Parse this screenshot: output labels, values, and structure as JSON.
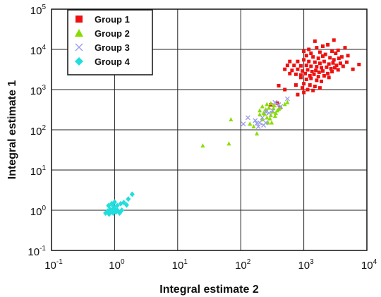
{
  "chart_data": {
    "type": "scatter",
    "xlabel": "Integral estimate 2",
    "ylabel": "Integral estimate 1",
    "x_scale": "log",
    "y_scale": "log",
    "xlim": [
      0.1,
      10000
    ],
    "ylim": [
      0.1,
      100000
    ],
    "x_ticks": [
      {
        "base": "10",
        "exp": "-1",
        "value": 0.1
      },
      {
        "base": "10",
        "exp": "0",
        "value": 1
      },
      {
        "base": "10",
        "exp": "1",
        "value": 10
      },
      {
        "base": "10",
        "exp": "2",
        "value": 100
      },
      {
        "base": "10",
        "exp": "3",
        "value": 1000
      },
      {
        "base": "10",
        "exp": "4",
        "value": 10000
      }
    ],
    "y_ticks": [
      {
        "base": "10",
        "exp": "-1",
        "value": 0.1
      },
      {
        "base": "10",
        "exp": "0",
        "value": 1
      },
      {
        "base": "10",
        "exp": "1",
        "value": 10
      },
      {
        "base": "10",
        "exp": "2",
        "value": 100
      },
      {
        "base": "10",
        "exp": "3",
        "value": 1000
      },
      {
        "base": "10",
        "exp": "4",
        "value": 10000
      },
      {
        "base": "10",
        "exp": "5",
        "value": 100000
      }
    ],
    "grid": true,
    "legend_position": "top-left",
    "series": [
      {
        "name": "Group 1",
        "marker": "square",
        "color": "#ee1111",
        "points": [
          [
            1500,
            16000
          ],
          [
            3000,
            17000
          ],
          [
            1200,
            10000
          ],
          [
            1600,
            11000
          ],
          [
            2000,
            12000
          ],
          [
            2400,
            13000
          ],
          [
            2800,
            9000
          ],
          [
            4500,
            11000
          ],
          [
            3500,
            9500
          ],
          [
            1000,
            9000
          ],
          [
            1300,
            8000
          ],
          [
            1800,
            8500
          ],
          [
            2200,
            7500
          ],
          [
            3200,
            8000
          ],
          [
            5000,
            7000
          ],
          [
            4000,
            6500
          ],
          [
            1100,
            7000
          ],
          [
            1400,
            6500
          ],
          [
            1700,
            6000
          ],
          [
            2000,
            6800
          ],
          [
            2600,
            6200
          ],
          [
            3000,
            5500
          ],
          [
            3600,
            6000
          ],
          [
            7500,
            4200
          ],
          [
            4800,
            4800
          ],
          [
            600,
            5000
          ],
          [
            800,
            5000
          ],
          [
            1000,
            5500
          ],
          [
            1200,
            5000
          ],
          [
            1500,
            4800
          ],
          [
            1800,
            4500
          ],
          [
            2100,
            5000
          ],
          [
            2500,
            4300
          ],
          [
            2900,
            4600
          ],
          [
            3300,
            4000
          ],
          [
            3800,
            4500
          ],
          [
            4200,
            3800
          ],
          [
            6000,
            3200
          ],
          [
            550,
            4000
          ],
          [
            700,
            4000
          ],
          [
            900,
            3900
          ],
          [
            1100,
            4000
          ],
          [
            1300,
            3800
          ],
          [
            1600,
            3700
          ],
          [
            1900,
            3500
          ],
          [
            2300,
            3600
          ],
          [
            2700,
            3300
          ],
          [
            3100,
            3500
          ],
          [
            3500,
            3100
          ],
          [
            500,
            3200
          ],
          [
            650,
            3000
          ],
          [
            800,
            3200
          ],
          [
            950,
            2900
          ],
          [
            1150,
            3100
          ],
          [
            1350,
            2800
          ],
          [
            1550,
            3000
          ],
          [
            1750,
            2700
          ],
          [
            2000,
            2900
          ],
          [
            2400,
            2500
          ],
          [
            2800,
            2800
          ],
          [
            600,
            2500
          ],
          [
            750,
            2400
          ],
          [
            900,
            2300
          ],
          [
            1050,
            2500
          ],
          [
            1250,
            2200
          ],
          [
            1450,
            2400
          ],
          [
            1700,
            2100
          ],
          [
            2100,
            2200
          ],
          [
            2500,
            2000
          ],
          [
            900,
            2000
          ],
          [
            1100,
            1800
          ],
          [
            1300,
            1900
          ],
          [
            1600,
            1700
          ],
          [
            1900,
            1600
          ],
          [
            1000,
            1400
          ],
          [
            1250,
            1300
          ],
          [
            1500,
            1200
          ],
          [
            1800,
            1100
          ],
          [
            950,
            1100
          ],
          [
            750,
            1300
          ],
          [
            1150,
            1000
          ],
          [
            1400,
            950
          ],
          [
            1000,
            850
          ],
          [
            800,
            750
          ],
          [
            400,
            1250
          ],
          [
            500,
            1000
          ],
          [
            380,
            460
          ],
          [
            300,
            420
          ],
          [
            420,
            360
          ]
        ]
      },
      {
        "name": "Group 2",
        "marker": "triangle",
        "color": "#88dd00",
        "points": [
          [
            25,
            40
          ],
          [
            65,
            45
          ],
          [
            70,
            180
          ],
          [
            140,
            140
          ],
          [
            180,
            80
          ],
          [
            160,
            120
          ],
          [
            200,
            300
          ],
          [
            220,
            380
          ],
          [
            240,
            250
          ],
          [
            260,
            200
          ],
          [
            280,
            350
          ],
          [
            300,
            450
          ],
          [
            320,
            280
          ],
          [
            350,
            220
          ],
          [
            380,
            300
          ],
          [
            420,
            350
          ],
          [
            220,
            180
          ],
          [
            270,
            150
          ],
          [
            250,
            320
          ],
          [
            340,
            400
          ],
          [
            360,
            260
          ],
          [
            300,
            230
          ],
          [
            400,
            330
          ],
          [
            500,
            430
          ],
          [
            550,
            480
          ],
          [
            230,
            260
          ],
          [
            290,
            190
          ],
          [
            330,
            340
          ],
          [
            200,
            240
          ],
          [
            260,
            430
          ],
          [
            310,
            150
          ]
        ]
      },
      {
        "name": "Group 3",
        "marker": "cross",
        "color": "#9999ee",
        "points": [
          [
            110,
            140
          ],
          [
            130,
            200
          ],
          [
            170,
            170
          ],
          [
            200,
            150
          ],
          [
            230,
            130
          ],
          [
            190,
            120
          ],
          [
            220,
            200
          ],
          [
            250,
            280
          ],
          [
            280,
            260
          ],
          [
            320,
            300
          ],
          [
            350,
            480
          ],
          [
            400,
            420
          ],
          [
            430,
            380
          ],
          [
            550,
            590
          ],
          [
            250,
            150
          ],
          [
            180,
            145
          ]
        ]
      },
      {
        "name": "Group 4",
        "marker": "diamond",
        "color": "#22dddd",
        "points": [
          [
            0.72,
            0.85
          ],
          [
            0.78,
            0.95
          ],
          [
            0.82,
            0.8
          ],
          [
            0.85,
            1.05
          ],
          [
            0.88,
            0.9
          ],
          [
            0.92,
            1.0
          ],
          [
            0.95,
            0.85
          ],
          [
            1.0,
            1.1
          ],
          [
            1.05,
            0.9
          ],
          [
            1.1,
            1.0
          ],
          [
            1.15,
            0.95
          ],
          [
            1.2,
            0.85
          ],
          [
            0.8,
            1.3
          ],
          [
            0.9,
            1.45
          ],
          [
            1.0,
            1.6
          ],
          [
            1.1,
            1.3
          ],
          [
            1.25,
            1.45
          ],
          [
            1.4,
            1.55
          ],
          [
            1.55,
            1.35
          ],
          [
            1.65,
            1.9
          ],
          [
            1.9,
            2.5
          ],
          [
            0.95,
            1.25
          ],
          [
            1.3,
            1.0
          ]
        ]
      }
    ]
  }
}
